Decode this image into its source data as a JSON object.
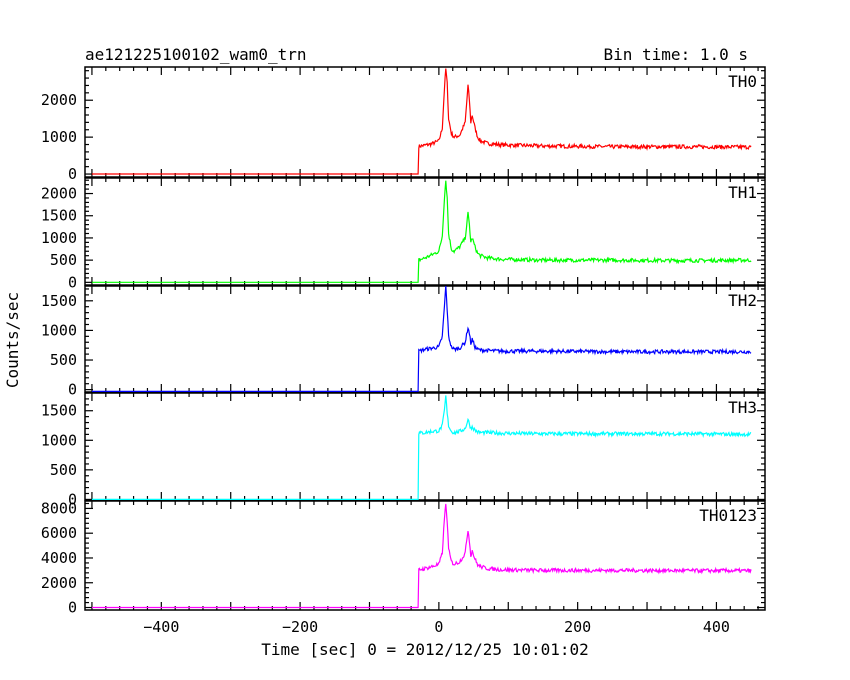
{
  "header": {
    "title": "ae121225100102_wam0_trn",
    "bin_time": "Bin time: 1.0 s"
  },
  "axes": {
    "ylabel": "Counts/sec",
    "xlabel": "Time [sec] 0 = 2012/12/25 10:01:02"
  },
  "chart_data": {
    "type": "line",
    "x_range": [
      -510,
      470
    ],
    "x_ticks": [
      -400,
      -200,
      0,
      200,
      400
    ],
    "shared_x": true,
    "series": [
      {
        "name": "TH0",
        "color": "#ff0000",
        "ylim": [
          -80,
          2900
        ],
        "yticks": [
          0,
          1000,
          2000
        ],
        "x": [
          -500,
          -30,
          -29,
          -20,
          -10,
          0,
          5,
          8,
          10,
          12,
          14,
          18,
          22,
          30,
          38,
          42,
          44,
          46,
          48,
          52,
          56,
          60,
          70,
          90,
          150,
          250,
          350,
          450
        ],
        "y": [
          0,
          0,
          750,
          780,
          820,
          900,
          1250,
          2300,
          2850,
          2450,
          1500,
          1100,
          1000,
          1050,
          1400,
          2400,
          2000,
          1400,
          1600,
          1250,
          1000,
          900,
          830,
          790,
          760,
          740,
          740,
          730
        ]
      },
      {
        "name": "TH1",
        "color": "#00ff00",
        "ylim": [
          -60,
          2350
        ],
        "yticks": [
          0,
          500,
          1000,
          1500,
          2000
        ],
        "x": [
          -500,
          -30,
          -29,
          -20,
          -10,
          0,
          5,
          8,
          10,
          12,
          14,
          18,
          22,
          30,
          38,
          42,
          44,
          46,
          48,
          52,
          56,
          60,
          70,
          90,
          150,
          250,
          350,
          450
        ],
        "y": [
          0,
          0,
          500,
          550,
          620,
          700,
          1050,
          1900,
          2300,
          1900,
          1100,
          750,
          700,
          800,
          1000,
          1550,
          1300,
          900,
          1000,
          800,
          650,
          600,
          550,
          520,
          500,
          500,
          490,
          500
        ]
      },
      {
        "name": "TH2",
        "color": "#0000ff",
        "ylim": [
          -40,
          1750
        ],
        "yticks": [
          0,
          500,
          1000,
          1500
        ],
        "x": [
          -500,
          -30,
          -29,
          -20,
          -10,
          0,
          5,
          8,
          10,
          12,
          14,
          18,
          22,
          30,
          38,
          42,
          44,
          46,
          48,
          52,
          56,
          60,
          70,
          90,
          150,
          250,
          350,
          450
        ],
        "y": [
          -30,
          -30,
          650,
          680,
          700,
          720,
          900,
          1400,
          1750,
          1350,
          900,
          720,
          680,
          700,
          800,
          1050,
          950,
          780,
          850,
          720,
          680,
          670,
          660,
          650,
          650,
          640,
          640,
          640
        ]
      },
      {
        "name": "TH3",
        "color": "#00ffff",
        "ylim": [
          -10,
          1800
        ],
        "yticks": [
          0,
          500,
          1000,
          1500
        ],
        "x": [
          -500,
          -30,
          -29,
          -20,
          -10,
          0,
          5,
          8,
          10,
          12,
          14,
          18,
          22,
          30,
          38,
          42,
          44,
          46,
          48,
          52,
          56,
          60,
          70,
          90,
          150,
          250,
          350,
          450
        ],
        "y": [
          0,
          0,
          1120,
          1130,
          1150,
          1160,
          1250,
          1500,
          1750,
          1450,
          1250,
          1150,
          1130,
          1150,
          1200,
          1350,
          1280,
          1200,
          1230,
          1170,
          1140,
          1130,
          1130,
          1120,
          1110,
          1110,
          1110,
          1100
        ]
      },
      {
        "name": "TH0123",
        "color": "#ff00ff",
        "ylim": [
          -200,
          8600
        ],
        "yticks": [
          0,
          2000,
          4000,
          6000,
          8000
        ],
        "x": [
          -500,
          -30,
          -29,
          -20,
          -10,
          0,
          5,
          8,
          10,
          12,
          14,
          18,
          22,
          30,
          38,
          42,
          44,
          46,
          48,
          52,
          56,
          60,
          70,
          90,
          150,
          250,
          350,
          450
        ],
        "y": [
          0,
          0,
          3050,
          3150,
          3300,
          3500,
          4400,
          7200,
          8300,
          7000,
          4700,
          3700,
          3500,
          3700,
          4400,
          6300,
          5400,
          4200,
          4600,
          3900,
          3450,
          3300,
          3150,
          3050,
          3000,
          3000,
          2980,
          2970
        ]
      }
    ]
  }
}
